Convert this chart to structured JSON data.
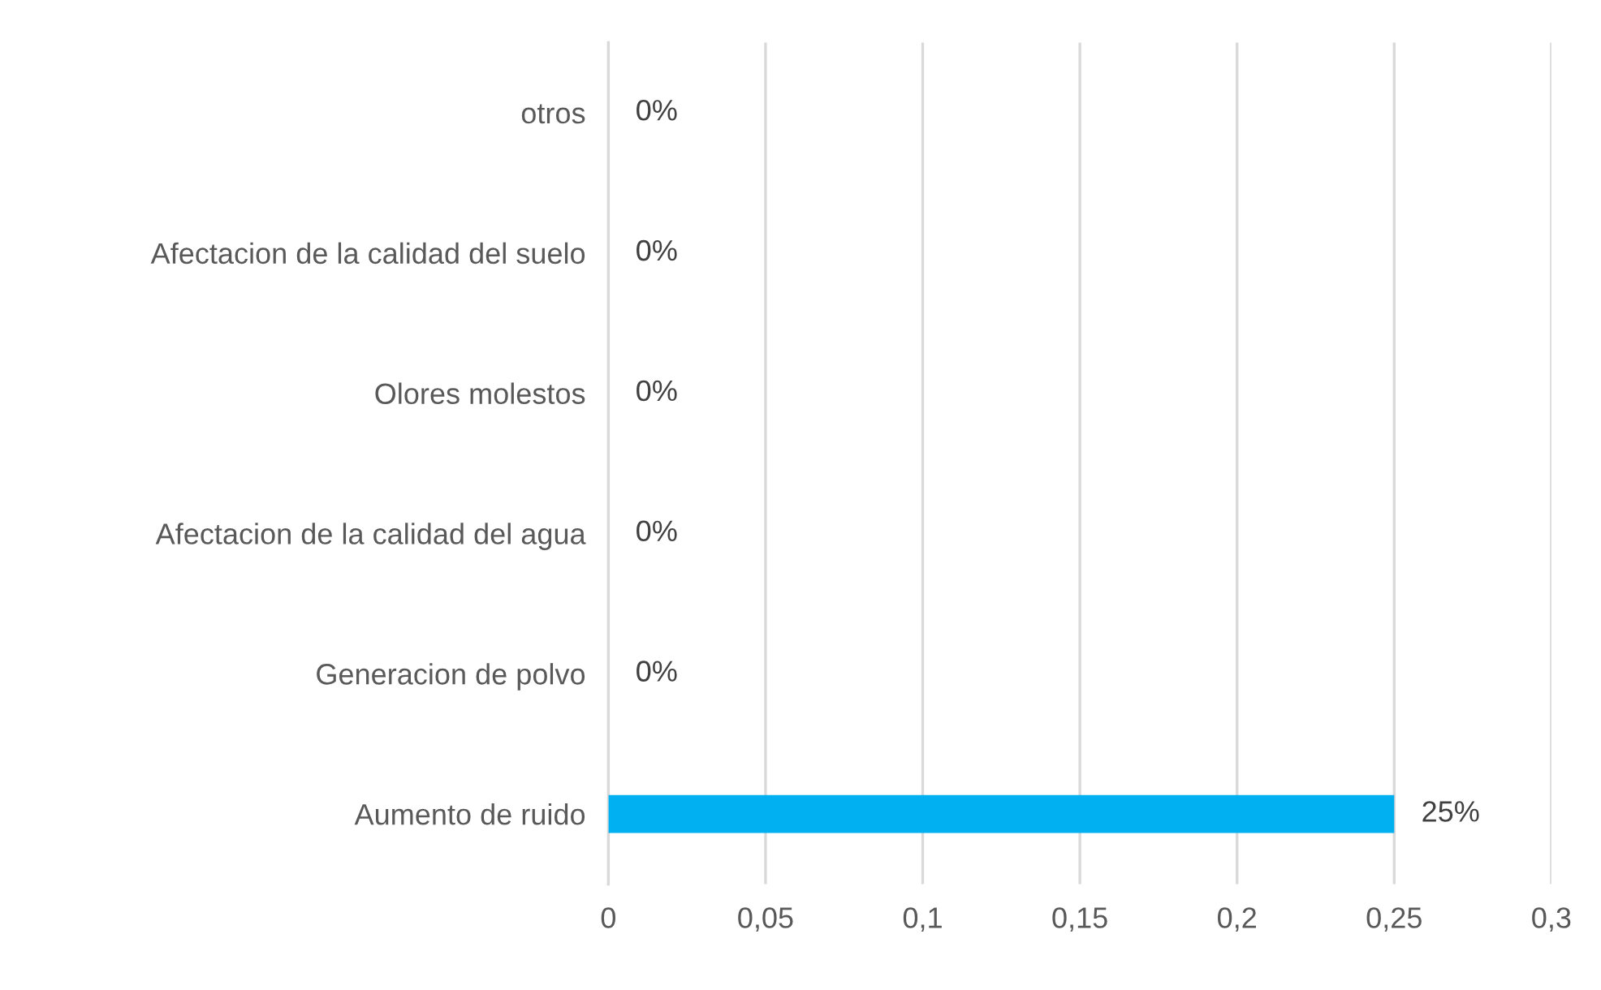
{
  "chart_data": {
    "type": "bar",
    "orientation": "horizontal",
    "categories": [
      "otros",
      "Afectacion de la calidad del suelo",
      "Olores molestos",
      "Afectacion de la calidad del agua",
      "Generacion de polvo",
      "Aumento de ruido"
    ],
    "values": [
      0,
      0,
      0,
      0,
      0,
      0.25
    ],
    "value_labels": [
      "0%",
      "0%",
      "0%",
      "0%",
      "0%",
      "25%"
    ],
    "color": "#00b0f0",
    "xlim": [
      0,
      0.3
    ],
    "xticks": [
      0,
      {
        "value": 0.05,
        "label": "0,05"
      },
      {
        "value": 0.1,
        "label": "0,1"
      },
      {
        "value": 0.15,
        "label": "0,15"
      },
      {
        "value": 0.2,
        "label": "0,2"
      },
      {
        "value": 0.25,
        "label": "0,25"
      },
      {
        "value": 0.3,
        "label": "0,3"
      }
    ],
    "grid": "x",
    "legend": false
  }
}
